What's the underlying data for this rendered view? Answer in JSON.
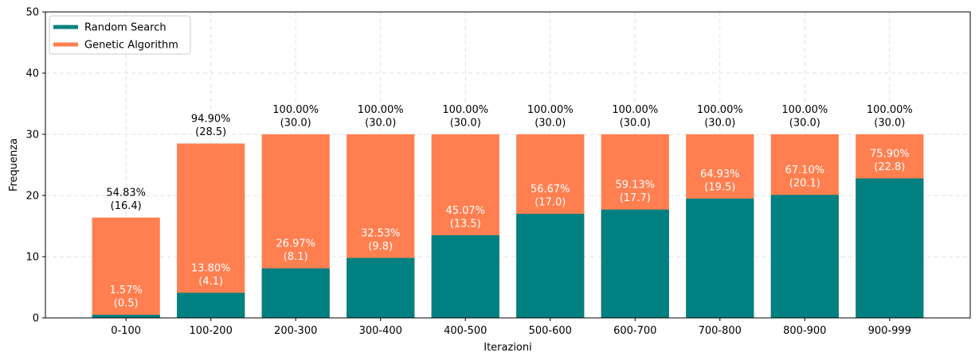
{
  "chart_data": {
    "type": "bar",
    "stacked": true,
    "xlabel": "Iterazioni",
    "ylabel": "Frequenza",
    "ylim": [
      0,
      50
    ],
    "yticks": [
      0,
      10,
      20,
      30,
      40,
      50
    ],
    "grid": true,
    "legend_position": "top-left",
    "categories": [
      "0-100",
      "100-200",
      "200-300",
      "300-400",
      "400-500",
      "500-600",
      "600-700",
      "700-800",
      "800-900",
      "900-999"
    ],
    "series": [
      {
        "name": "Random Search",
        "color": "#008080",
        "values": [
          0.5,
          4.1,
          8.1,
          9.8,
          13.5,
          17.0,
          17.7,
          19.5,
          20.1,
          22.8
        ],
        "labels": [
          "1.57%\n(0.5)",
          "13.80%\n(4.1)",
          "26.97%\n(8.1)",
          "32.53%\n(9.8)",
          "45.07%\n(13.5)",
          "56.67%\n(17.0)",
          "59.13%\n(17.7)",
          "64.93%\n(19.5)",
          "67.10%\n(20.1)",
          "75.90%\n(22.8)"
        ]
      },
      {
        "name": "Genetic Algorithm",
        "color": "#FF7F50",
        "values": [
          16.4,
          28.5,
          30.0,
          30.0,
          30.0,
          30.0,
          30.0,
          30.0,
          30.0,
          30.0
        ],
        "labels": [
          "54.83%\n(16.4)",
          "94.90%\n(28.5)",
          "100.00%\n(30.0)",
          "100.00%\n(30.0)",
          "100.00%\n(30.0)",
          "100.00%\n(30.0)",
          "100.00%\n(30.0)",
          "100.00%\n(30.0)",
          "100.00%\n(30.0)",
          "100.00%\n(30.0)"
        ]
      }
    ]
  }
}
